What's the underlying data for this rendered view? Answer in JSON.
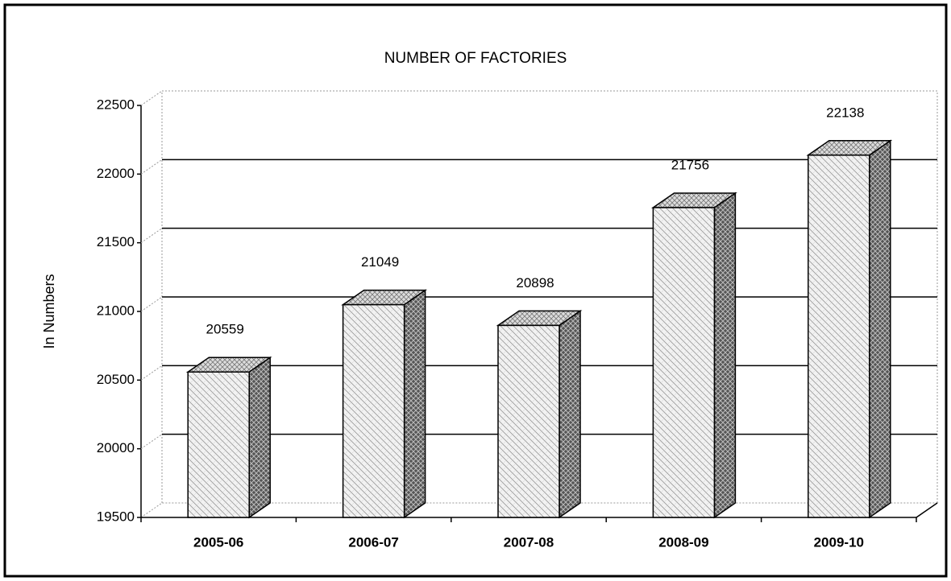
{
  "chart_data": {
    "type": "bar3d",
    "title": "NUMBER OF FACTORIES",
    "y_label": "In Numbers",
    "categories": [
      "2005-06",
      "2006-07",
      "2007-08",
      "2008-09",
      "2009-10"
    ],
    "values": [
      20559,
      21049,
      20898,
      21756,
      22138
    ],
    "ylim": [
      19500,
      22500
    ],
    "yticks": [
      19500,
      20000,
      20500,
      21000,
      21500,
      22000,
      22500
    ],
    "grid": true,
    "color": "#e6e6e6"
  }
}
